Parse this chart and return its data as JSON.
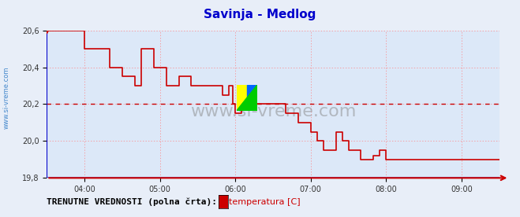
{
  "title": "Savinja - Medlog",
  "title_color": "#0000cc",
  "bg_color": "#e8eef8",
  "plot_bg_color": "#dce8f8",
  "grid_color": "#ff8080",
  "ylabel": "",
  "ylim": [
    19.8,
    20.6
  ],
  "yticks": [
    19.8,
    20.0,
    20.2,
    20.4,
    20.6
  ],
  "xlim_start": 0,
  "xlim_end": 360,
  "xtick_positions": [
    30,
    90,
    150,
    210,
    270,
    330
  ],
  "xtick_labels": [
    "04:00",
    "05:00",
    "06:00",
    "07:00",
    "08:00",
    "09:00"
  ],
  "avg_line_y": 20.2,
  "avg_line_color": "#cc0000",
  "watermark": "www.si-vreme.com",
  "watermark_color": "#888888",
  "left_text": "www.si-vreme.com",
  "left_text_color": "#4488cc",
  "legend_label": "temperatura [C]",
  "legend_color": "#cc0000",
  "bottom_label": "TRENUTNE VREDNOSTI (polna črta):",
  "line_color": "#cc0000",
  "axis_color": "#0000cc",
  "bottom_axis_color": "#6666cc",
  "temp_data_x": [
    0,
    30,
    30,
    50,
    50,
    60,
    60,
    70,
    70,
    75,
    75,
    85,
    85,
    95,
    95,
    105,
    105,
    115,
    115,
    120,
    120,
    125,
    125,
    130,
    130,
    140,
    140,
    145,
    145,
    148,
    148,
    150,
    150,
    155,
    155,
    165,
    165,
    175,
    175,
    180,
    180,
    190,
    190,
    200,
    200,
    210,
    210,
    215,
    215,
    220,
    220,
    230,
    230,
    235,
    235,
    240,
    240,
    250,
    250,
    260,
    260,
    265,
    265,
    270,
    270,
    280,
    280,
    290,
    290,
    300,
    300,
    310,
    310,
    315,
    315,
    330,
    330,
    340,
    340,
    350,
    350,
    360
  ],
  "temp_data_y": [
    20.6,
    20.6,
    20.5,
    20.5,
    20.4,
    20.4,
    20.35,
    20.35,
    20.3,
    20.3,
    20.5,
    20.5,
    20.4,
    20.4,
    20.3,
    20.3,
    20.35,
    20.35,
    20.3,
    20.3,
    20.3,
    20.3,
    20.3,
    20.3,
    20.3,
    20.3,
    20.25,
    20.25,
    20.3,
    20.3,
    20.2,
    20.2,
    20.15,
    20.15,
    20.2,
    20.2,
    20.2,
    20.2,
    20.2,
    20.2,
    20.2,
    20.2,
    20.15,
    20.15,
    20.1,
    20.1,
    20.05,
    20.05,
    20.0,
    20.0,
    19.95,
    19.95,
    20.05,
    20.05,
    20.0,
    20.0,
    19.95,
    19.95,
    19.9,
    19.9,
    19.92,
    19.92,
    19.95,
    19.95,
    19.9,
    19.9,
    19.9,
    19.9,
    19.9,
    19.9,
    19.9,
    19.9,
    19.9,
    19.9,
    19.9,
    19.9,
    19.9,
    19.9,
    19.9,
    19.9,
    19.9,
    19.9
  ]
}
